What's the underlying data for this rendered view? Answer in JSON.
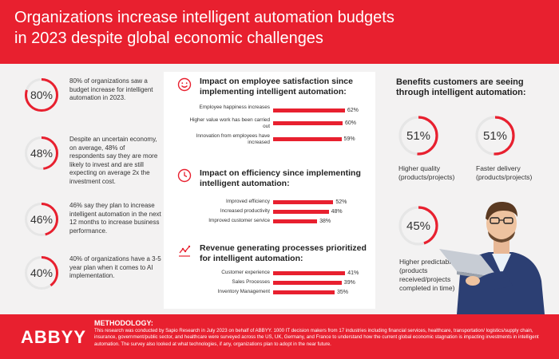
{
  "header": {
    "title_line1": "Organizations increase intelligent automation budgets",
    "title_line2": "in 2023 despite global economic challenges"
  },
  "colors": {
    "accent": "#e8202f",
    "ring_bg": "#e6e6e6",
    "background": "#f3f2f2"
  },
  "stats": [
    {
      "value": "80%",
      "fraction": 0.8,
      "text": "80% of organizations saw a budget increase for intelligent automation in 2023."
    },
    {
      "value": "48%",
      "fraction": 0.48,
      "text": "Despite an uncertain economy, on average, 48% of respondents say they are more likely to invest and are still expecting on average 2x the investment cost."
    },
    {
      "value": "46%",
      "fraction": 0.46,
      "text": "46% say they plan to increase intelligent automation in the next 12 months to increase business performance."
    },
    {
      "value": "40%",
      "fraction": 0.4,
      "text": "40% of organizations have a 3-5 year plan when it comes to AI implementation."
    }
  ],
  "sections": {
    "satisfaction": {
      "title": "Impact on employee satisfaction since implementing intelligent automation:",
      "icon": "smiley-icon"
    },
    "efficiency": {
      "title": "Impact on efficiency since implementing intelligent automation:",
      "icon": "clock-icon"
    },
    "revenue": {
      "title": "Revenue generating processes prioritized for intelligent automation:",
      "icon": "trend-chart-icon"
    }
  },
  "chart_data": [
    {
      "type": "bar",
      "orientation": "horizontal",
      "categories": [
        "Employee happiness increases",
        "Higher value work has been carried out",
        "Innovation from employees have increased"
      ],
      "values": [
        62,
        60,
        59
      ],
      "value_labels": [
        "62%",
        "60%",
        "59%"
      ]
    },
    {
      "type": "bar",
      "orientation": "horizontal",
      "categories": [
        "Improved efficiency",
        "Increased productivity",
        "Improved customer service"
      ],
      "values": [
        52,
        48,
        38
      ],
      "value_labels": [
        "52%",
        "48%",
        "38%"
      ]
    },
    {
      "type": "bar",
      "orientation": "horizontal",
      "categories": [
        "Customer experience",
        "Sales Processes",
        "Inventory Management"
      ],
      "values": [
        41,
        39,
        35
      ],
      "value_labels": [
        "41%",
        "39%",
        "35%"
      ]
    }
  ],
  "benefits": {
    "title": "Benefits customers are seeing through intelligent automation:",
    "items": [
      {
        "value": "51%",
        "fraction": 0.51,
        "label": "Higher quality (products/projects)"
      },
      {
        "value": "51%",
        "fraction": 0.51,
        "label": "Faster delivery (products/projects)"
      },
      {
        "value": "45%",
        "fraction": 0.45,
        "label": "Higher predictability (products received/projects completed in time)"
      }
    ]
  },
  "footer": {
    "logo": "ABBYY",
    "methodology_heading": "METHODOLOGY:",
    "methodology_text": "This research was conducted by Sapio Research in July 2023 on behalf of ABBYY. 1000 IT decision makers from 17 industries including financial services, healthcare, transportation/ logistics/supply chain, insurance, government/public sector, and healthcare were surveyed across the US, UK, Germany, and France to understand how the current global economic stagnation is impacting investments in intelligent automation. The survey also looked at what technologies, if any, organizations plan to adopt in the near future."
  }
}
